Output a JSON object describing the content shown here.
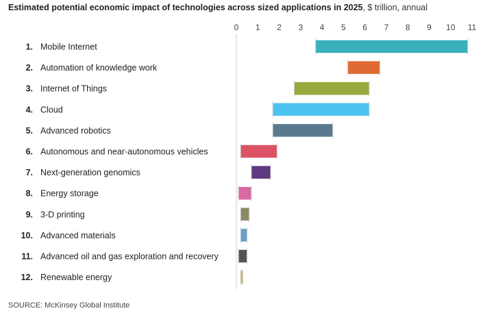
{
  "chart_data": {
    "type": "bar",
    "subtype": "floating-range-horizontal",
    "title": "Estimated potential economic impact of technologies across sized applications in 2025",
    "subtitle": ", $ trillion, annual",
    "xlim": [
      0,
      11
    ],
    "xticks": [
      0,
      1,
      2,
      3,
      4,
      5,
      6,
      7,
      8,
      9,
      10,
      11
    ],
    "grid": false,
    "source": "SOURCE: McKinsey Global Institute",
    "categories": [
      {
        "rank": "1.",
        "label": "Mobile Internet",
        "low": 3.7,
        "high": 10.8,
        "color": "#3ab0bd"
      },
      {
        "rank": "2.",
        "label": "Automation of knowledge work",
        "low": 5.2,
        "high": 6.7,
        "color": "#e06a33"
      },
      {
        "rank": "3.",
        "label": "Internet of Things",
        "low": 2.7,
        "high": 6.2,
        "color": "#98aa3e"
      },
      {
        "rank": "4.",
        "label": "Cloud",
        "low": 1.7,
        "high": 6.2,
        "color": "#4cc4ef"
      },
      {
        "rank": "5.",
        "label": "Advanced robotics",
        "low": 1.7,
        "high": 4.5,
        "color": "#59798f"
      },
      {
        "rank": "6.",
        "label": "Autonomous and near-autonomous vehicles",
        "low": 0.2,
        "high": 1.9,
        "color": "#dd5365"
      },
      {
        "rank": "7.",
        "label": "Next-generation genomics",
        "low": 0.7,
        "high": 1.6,
        "color": "#5e3880"
      },
      {
        "rank": "8.",
        "label": "Energy storage",
        "low": 0.1,
        "high": 0.7,
        "color": "#d86aa4"
      },
      {
        "rank": "9.",
        "label": "3-D printing",
        "low": 0.2,
        "high": 0.6,
        "color": "#8c8a64"
      },
      {
        "rank": "10.",
        "label": "Advanced materials",
        "low": 0.2,
        "high": 0.5,
        "color": "#6aa2c9"
      },
      {
        "rank": "11.",
        "label": "Advanced oil and gas exploration and recovery",
        "low": 0.1,
        "high": 0.5,
        "color": "#555555"
      },
      {
        "rank": "12.",
        "label": "Renewable energy",
        "low": 0.2,
        "high": 0.3,
        "color": "#d4b24c"
      }
    ]
  }
}
